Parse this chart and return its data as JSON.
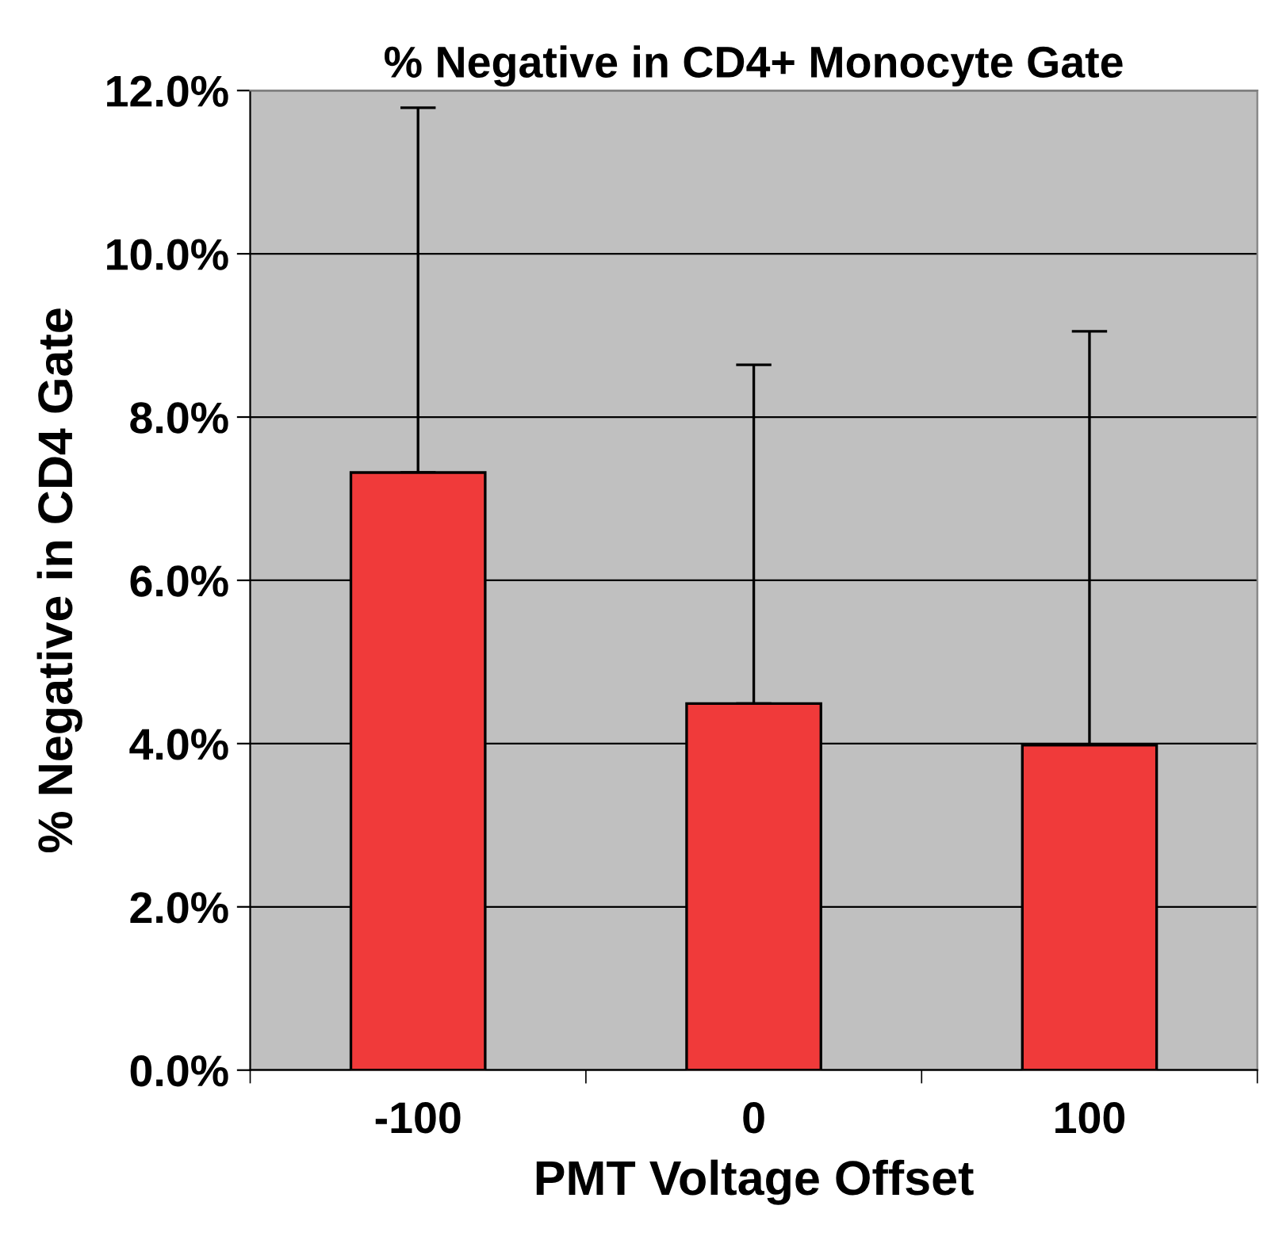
{
  "chart_data": {
    "type": "bar",
    "title": "% Negative in CD4+ Monocyte Gate",
    "xlabel": "PMT Voltage Offset",
    "ylabel": "% Negative in CD4 Gate",
    "categories": [
      "-100",
      "0",
      "100"
    ],
    "values": [
      7.32,
      4.49,
      3.98
    ],
    "errors": [
      [
        7.32,
        11.79
      ],
      [
        4.49,
        8.64
      ],
      [
        3.98,
        9.05
      ]
    ],
    "color": "#f03a3a",
    "ylim": [
      0,
      12
    ],
    "yticks": [
      {
        "value": 0,
        "label": "0.0%"
      },
      {
        "value": 2,
        "label": "2.0%"
      },
      {
        "value": 4,
        "label": "4.0%"
      },
      {
        "value": 6,
        "label": "6.0%"
      },
      {
        "value": 8,
        "label": "8.0%"
      },
      {
        "value": 10,
        "label": "10.0%"
      },
      {
        "value": 12,
        "label": "12.0%"
      }
    ],
    "grid": "y"
  }
}
